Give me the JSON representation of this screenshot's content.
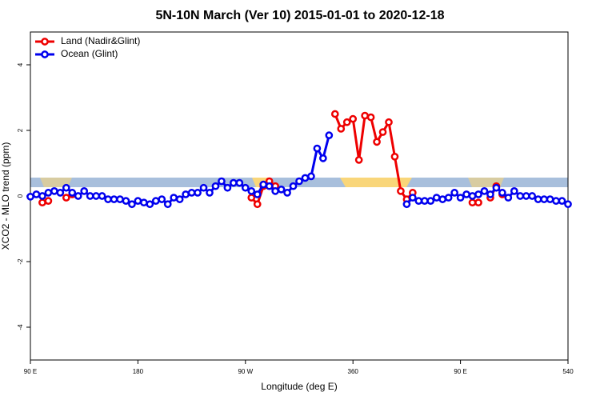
{
  "chart_data": {
    "type": "line",
    "title": "5N-10N March (Ver 10)   2015-01-01 to 2020-12-18",
    "x_label": "Longitude (deg E)",
    "y_label": "XCO2 - MLO trend (ppm)",
    "x": [
      90,
      95,
      100,
      105,
      110,
      115,
      120,
      125,
      130,
      135,
      140,
      145,
      150,
      155,
      160,
      165,
      170,
      175,
      180,
      185,
      190,
      195,
      200,
      205,
      210,
      215,
      220,
      225,
      230,
      235,
      240,
      245,
      250,
      255,
      260,
      265,
      270,
      275,
      280,
      285,
      290,
      295,
      300,
      305,
      310,
      315,
      320,
      325,
      330,
      335,
      340,
      345,
      350,
      355,
      360,
      365,
      370,
      375,
      380,
      385,
      390,
      395,
      400,
      405,
      410,
      415,
      420,
      425,
      430,
      435,
      440,
      445,
      450,
      455,
      460,
      465,
      470,
      475,
      480,
      485,
      490,
      495,
      500,
      505,
      510,
      515,
      520,
      525,
      530,
      535,
      540
    ],
    "series": [
      {
        "name": "Land (Nadir&Glint)",
        "color": "#ee0000",
        "values": [
          null,
          null,
          -0.2,
          -0.15,
          null,
          null,
          -0.05,
          0.05,
          null,
          null,
          null,
          null,
          null,
          null,
          null,
          null,
          null,
          null,
          null,
          null,
          null,
          null,
          null,
          null,
          null,
          null,
          null,
          null,
          null,
          null,
          null,
          null,
          null,
          null,
          null,
          null,
          null,
          -0.05,
          -0.25,
          0.3,
          0.45,
          0.3,
          null,
          null,
          null,
          null,
          null,
          null,
          null,
          null,
          null,
          2.5,
          2.05,
          2.25,
          2.35,
          1.1,
          2.45,
          2.4,
          1.65,
          1.95,
          2.25,
          1.2,
          0.15,
          -0.1,
          0.1,
          null,
          null,
          null,
          null,
          null,
          null,
          null,
          null,
          null,
          -0.2,
          -0.2,
          null,
          -0.05,
          0.3,
          0.05,
          null,
          null,
          null,
          null,
          null,
          null,
          null,
          null,
          null,
          null,
          null
        ]
      },
      {
        "name": "Ocean (Glint)",
        "color": "#0000ee",
        "values": [
          -0.02,
          0.05,
          0,
          0.1,
          0.15,
          0.1,
          0.25,
          0.1,
          0,
          0.15,
          0,
          0,
          0,
          -0.1,
          -0.1,
          -0.1,
          -0.15,
          -0.25,
          -0.15,
          -0.2,
          -0.25,
          -0.15,
          -0.1,
          -0.25,
          -0.05,
          -0.1,
          0.05,
          0.1,
          0.1,
          0.25,
          0.1,
          0.3,
          0.45,
          0.25,
          0.4,
          0.4,
          0.25,
          0.15,
          0.05,
          0.35,
          0.3,
          0.15,
          0.2,
          0.1,
          0.3,
          0.45,
          0.55,
          0.6,
          1.45,
          1.15,
          1.85,
          null,
          null,
          null,
          null,
          null,
          null,
          null,
          null,
          null,
          null,
          null,
          null,
          -0.25,
          -0.05,
          -0.15,
          -0.15,
          -0.15,
          -0.05,
          -0.1,
          -0.05,
          0.1,
          -0.05,
          0.05,
          0,
          0.05,
          0.15,
          0.05,
          0.25,
          0.1,
          -0.05,
          0.15,
          0,
          0,
          0,
          -0.1,
          -0.1,
          -0.1,
          -0.15,
          -0.15,
          -0.25
        ]
      }
    ],
    "xlim": [
      90,
      540
    ],
    "xticks": [
      {
        "value": 90,
        "label": "90 E"
      },
      180,
      {
        "value": 270,
        "label": "90 W"
      },
      360,
      {
        "value": 450,
        "label": "90 E"
      },
      540
    ],
    "ylim": [
      -5,
      5
    ],
    "yticks": [
      -4,
      -2,
      0,
      2,
      4
    ],
    "grid": false,
    "legend": "top-left"
  }
}
